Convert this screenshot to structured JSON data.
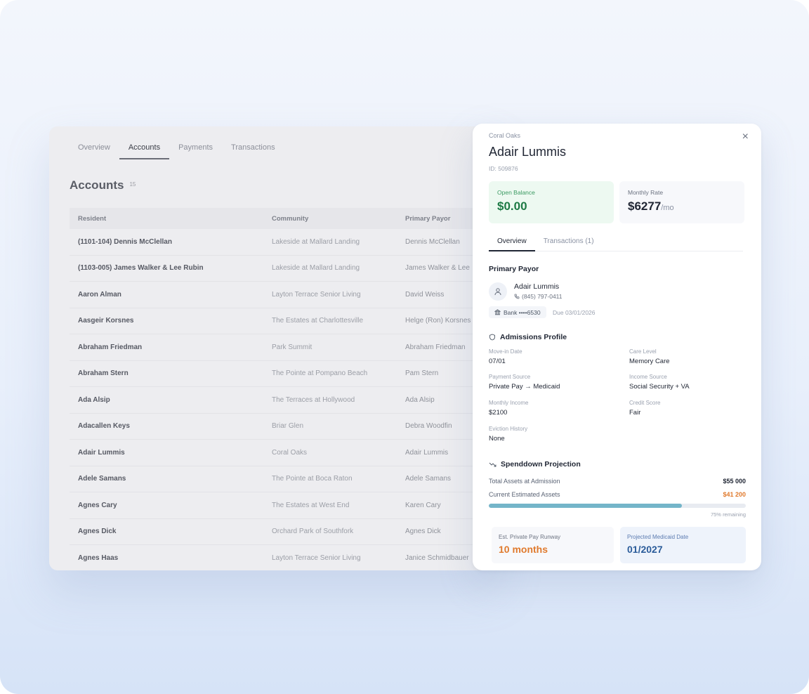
{
  "tabs": [
    "Overview",
    "Accounts",
    "Payments",
    "Transactions"
  ],
  "active_tab": "Accounts",
  "accounts": {
    "title": "Accounts",
    "count": "15",
    "columns": [
      "Resident",
      "Community",
      "Primary Payor"
    ],
    "rows": [
      [
        "(1101-104) Dennis McClellan",
        "Lakeside at Mallard Landing",
        "Dennis McClellan"
      ],
      [
        "(1103-005) James Walker & Lee Rubin",
        "Lakeside at Mallard Landing",
        "James Walker & Lee"
      ],
      [
        "Aaron Alman",
        "Layton Terrace Senior Living",
        "David Weiss"
      ],
      [
        "Aasgeir Korsnes",
        "The Estates at Charlottesville",
        "Helge (Ron) Korsnes"
      ],
      [
        "Abraham Friedman",
        "Park Summit",
        "Abraham Friedman"
      ],
      [
        "Abraham Stern",
        "The Pointe at Pompano Beach",
        "Pam Stern"
      ],
      [
        "Ada Alsip",
        "The Terraces at Hollywood",
        "Ada Alsip"
      ],
      [
        "Adacallen Keys",
        "Briar Glen",
        "Debra Woodfin"
      ],
      [
        "Adair Lummis",
        "Coral Oaks",
        "Adair Lummis"
      ],
      [
        "Adele Samans",
        "The Pointe at Boca Raton",
        "Adele Samans"
      ],
      [
        "Agnes Cary",
        "The Estates at West End",
        "Karen Cary"
      ],
      [
        "Agnes Dick",
        "Orchard Park of Southfork",
        "Agnes Dick"
      ],
      [
        "Agnes Haas",
        "Layton Terrace Senior Living",
        "Janice Schmidbauer"
      ]
    ]
  },
  "panel": {
    "community": "Coral Oaks",
    "name": "Adair Lummis",
    "id": "ID: 509876",
    "close_icon": "×",
    "open_balance_label": "Open Balance",
    "open_balance_value": "$0.00",
    "monthly_rate_label": "Monthly Rate",
    "monthly_rate_value": "$6277",
    "monthly_rate_unit": "/mo",
    "tabs": [
      "Overview",
      "Transactions (1)"
    ],
    "primary_payor_title": "Primary Payor",
    "payor_name": "Adair Lummis",
    "payor_phone": "(845) 797-0411",
    "bank": "Bank ••••6530",
    "due": "Due 03/01/2026",
    "admissions_title": "Admissions Profile",
    "fields": [
      {
        "label": "Move-in Date",
        "value": "07/01"
      },
      {
        "label": "Care Level",
        "value": "Memory Care"
      },
      {
        "label": "Payment Source",
        "value": "Private Pay → Medicaid"
      },
      {
        "label": "Income Source",
        "value": "Social Security + VA"
      },
      {
        "label": "Monthly Income",
        "value": "$2100"
      },
      {
        "label": "Credit Score",
        "value": "Fair"
      },
      {
        "label": "Eviction History",
        "value": "None"
      }
    ],
    "spenddown_title": "Spenddown Projection",
    "total_assets_label": "Total Assets at Admission",
    "total_assets_value": "$55 000",
    "current_assets_label": "Current Estimated Assets",
    "current_assets_value": "$41 200",
    "remaining_fraction": 0.75,
    "remaining_text": "75% remaining",
    "runway_label": "Est. Private Pay Runway",
    "runway_value": "10 months",
    "medicaid_label": "Projected Medicaid Date",
    "medicaid_value": "01/2027",
    "colors": {
      "accent_green": "#1d7a45",
      "accent_orange": "#e07a2d",
      "accent_blue": "#2b5c9a",
      "progress": "#74b5c9"
    }
  }
}
